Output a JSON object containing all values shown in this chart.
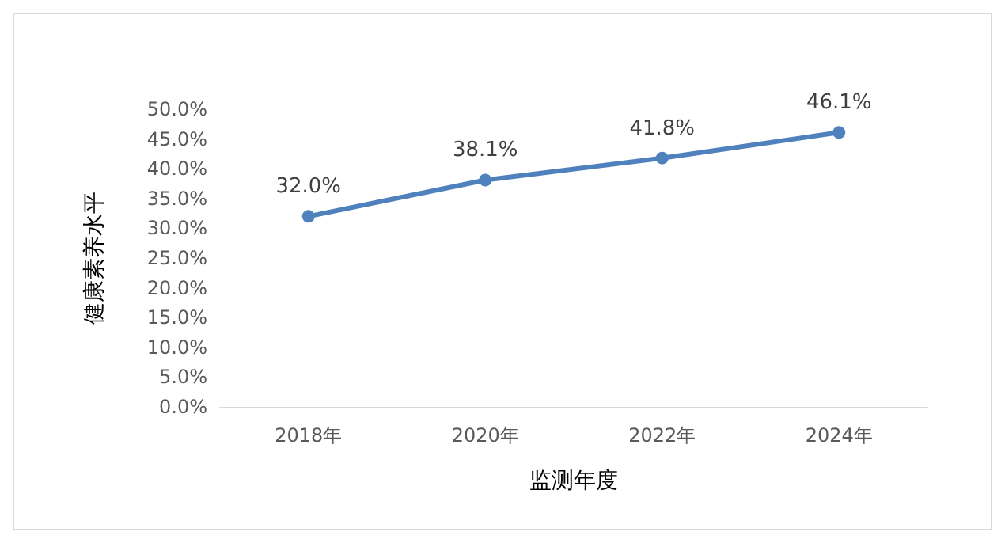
{
  "chart_data": {
    "type": "line",
    "xlabel": "监测年度",
    "ylabel": "健康素养水平",
    "categories": [
      "2018年",
      "2020年",
      "2022年",
      "2024年"
    ],
    "series": [
      {
        "color": "#4f81bd",
        "values": [
          32.0,
          38.1,
          41.8,
          46.1
        ]
      }
    ],
    "value_labels": [
      "32.0%",
      "38.1%",
      "41.8%",
      "46.1%"
    ],
    "ylim": [
      0,
      50
    ],
    "yticks": [
      {
        "value": 0,
        "label": "0.0%"
      },
      {
        "value": 5,
        "label": "5.0%"
      },
      {
        "value": 10,
        "label": "10.0%"
      },
      {
        "value": 15,
        "label": "15.0%"
      },
      {
        "value": 20,
        "label": "20.0%"
      },
      {
        "value": 25,
        "label": "25.0%"
      },
      {
        "value": 30,
        "label": "30.0%"
      },
      {
        "value": 35,
        "label": "35.0%"
      },
      {
        "value": 40,
        "label": "40.0%"
      },
      {
        "value": 45,
        "label": "45.0%"
      },
      {
        "value": 50,
        "label": "50.0%"
      }
    ],
    "grid": false,
    "marker": "circle",
    "line_style": "solid"
  }
}
